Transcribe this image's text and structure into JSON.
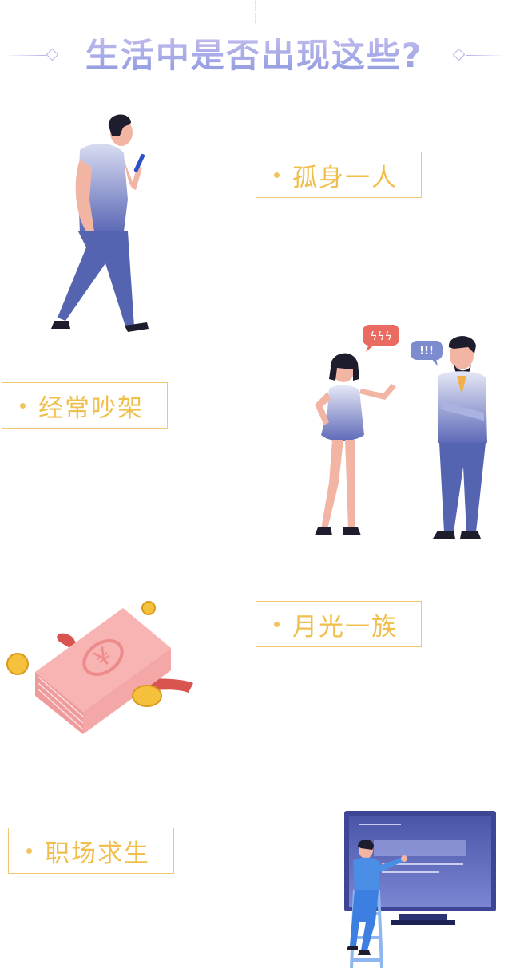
{
  "header": {
    "title": "生活中是否出现这些?"
  },
  "items": [
    {
      "label": "孤身一人"
    },
    {
      "label": "经常吵架"
    },
    {
      "label": "月光一族"
    },
    {
      "label": "职场求生"
    }
  ],
  "bubbles": {
    "woman": "ϟϟϟ",
    "man": "!!!"
  },
  "colors": {
    "accent_label": "#f0bf4d",
    "accent_border": "#f1c770",
    "title_gradient_top": "#c9c2f1",
    "title_gradient_bottom": "#8d98df",
    "figure_blue": "#5c6ab8"
  }
}
